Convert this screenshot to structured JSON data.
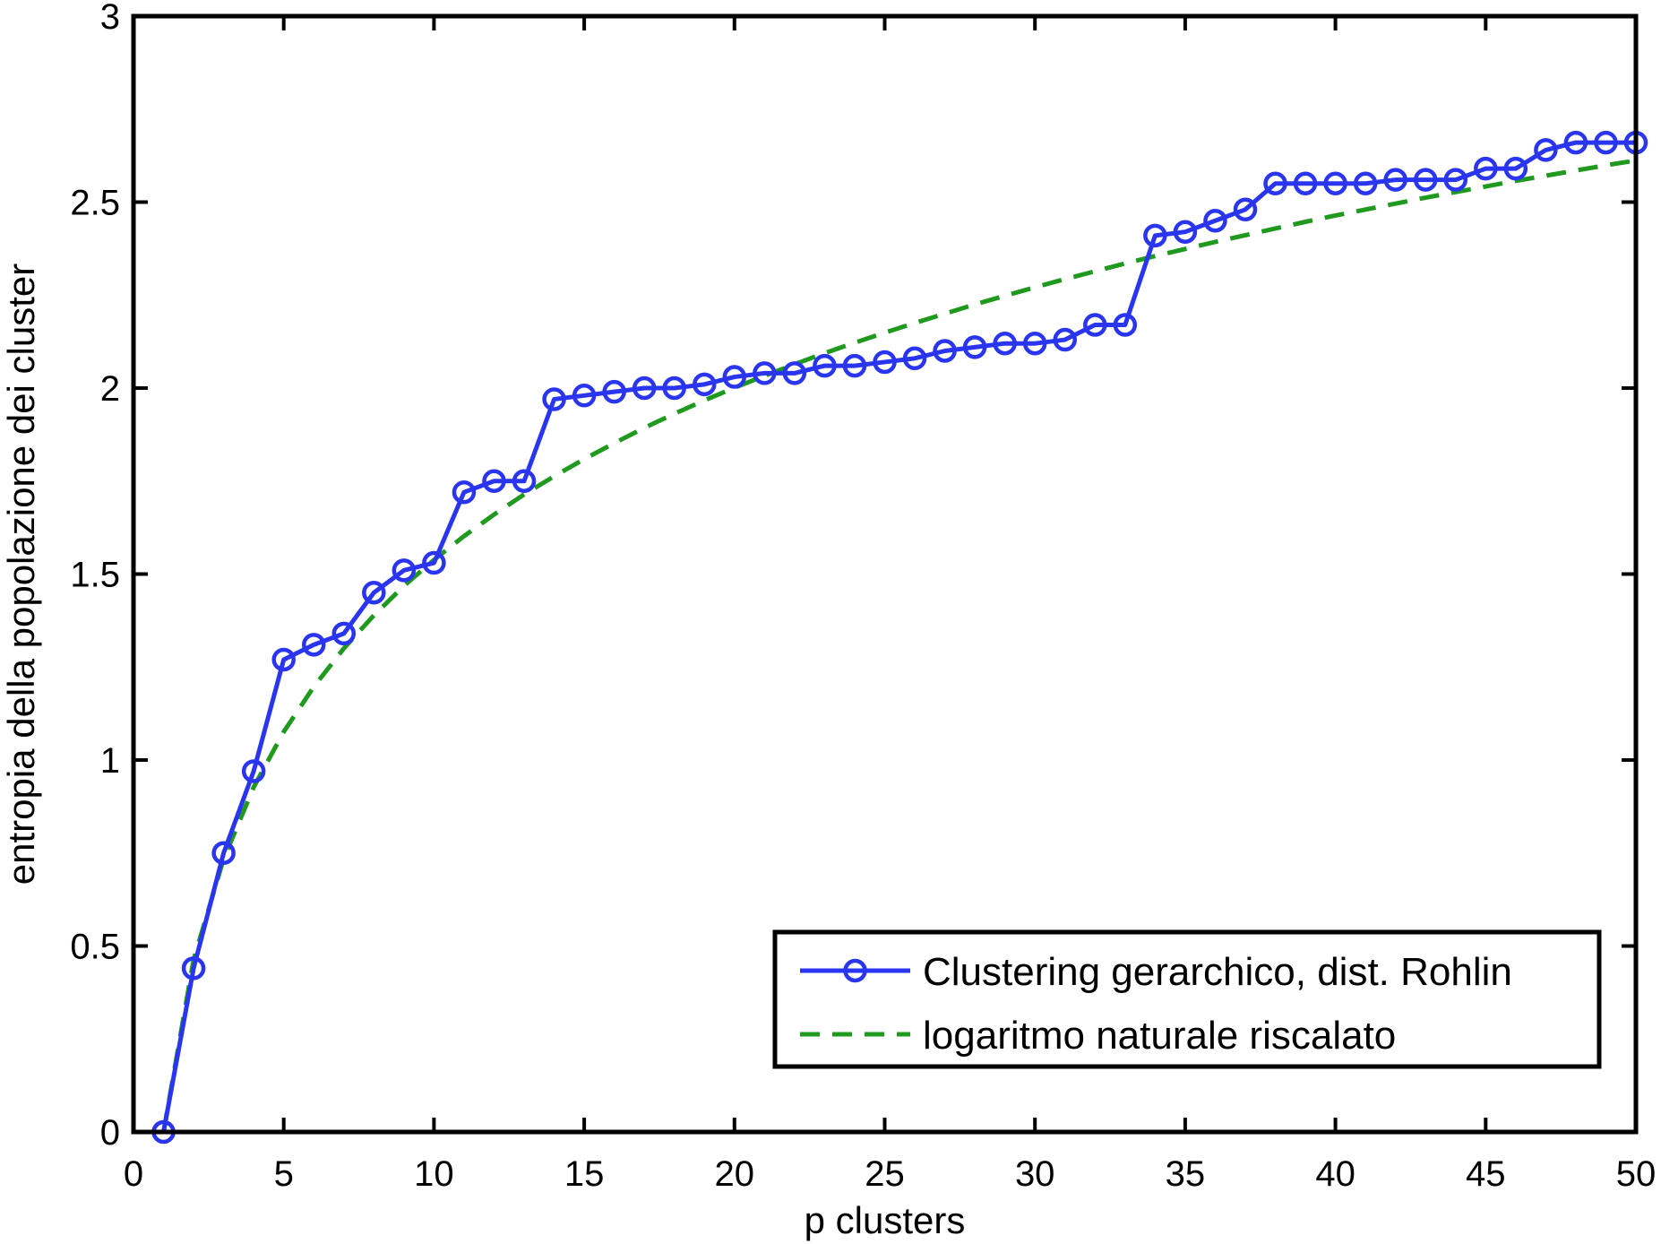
{
  "chart_data": {
    "type": "line",
    "xlabel": "p clusters",
    "ylabel": "entropia della popolazione dei cluster",
    "xlim": [
      0,
      50
    ],
    "ylim": [
      0,
      3
    ],
    "xticks": [
      0,
      5,
      10,
      15,
      20,
      25,
      30,
      35,
      40,
      45,
      50
    ],
    "yticks": [
      0,
      0.5,
      1,
      1.5,
      2,
      2.5,
      3
    ],
    "xtick_labels": [
      "0",
      "5",
      "10",
      "15",
      "20",
      "25",
      "30",
      "35",
      "40",
      "45",
      "50"
    ],
    "ytick_labels": [
      "0",
      "0.5",
      "1",
      "1.5",
      "2",
      "2.5",
      "3"
    ],
    "grid": false,
    "legend_position": "bottom-right",
    "series": [
      {
        "name": "Clustering gerarchico, dist. Rohlin",
        "color": "#2a35f0",
        "line_style": "solid",
        "marker": "circle",
        "x": [
          1,
          2,
          3,
          4,
          5,
          6,
          7,
          8,
          9,
          10,
          11,
          12,
          13,
          14,
          15,
          16,
          17,
          18,
          19,
          20,
          21,
          22,
          23,
          24,
          25,
          26,
          27,
          28,
          29,
          30,
          31,
          32,
          33,
          34,
          35,
          36,
          37,
          38,
          39,
          40,
          41,
          42,
          43,
          44,
          45,
          46,
          47,
          48,
          49,
          50
        ],
        "values": [
          0,
          0.44,
          0.75,
          0.97,
          1.27,
          1.31,
          1.34,
          1.45,
          1.51,
          1.53,
          1.72,
          1.75,
          1.75,
          1.97,
          1.98,
          1.99,
          2.0,
          2.0,
          2.01,
          2.03,
          2.04,
          2.04,
          2.06,
          2.06,
          2.07,
          2.08,
          2.1,
          2.11,
          2.12,
          2.12,
          2.13,
          2.17,
          2.17,
          2.41,
          2.42,
          2.45,
          2.48,
          2.55,
          2.55,
          2.55,
          2.55,
          2.56,
          2.56,
          2.56,
          2.59,
          2.59,
          2.64,
          2.66,
          2.66,
          2.66
        ]
      },
      {
        "name": "logaritmo naturale riscalato",
        "color": "#1f9a1f",
        "line_style": "dashed",
        "marker": "none",
        "x": [
          1,
          2,
          3,
          4,
          5,
          6,
          7,
          8,
          9,
          10,
          11,
          12,
          13,
          14,
          15,
          16,
          17,
          18,
          19,
          20,
          21,
          22,
          23,
          24,
          25,
          26,
          27,
          28,
          29,
          30,
          31,
          32,
          33,
          34,
          35,
          36,
          37,
          38,
          39,
          40,
          41,
          42,
          43,
          44,
          45,
          46,
          47,
          48,
          49,
          50
        ],
        "values": [
          0,
          0.463,
          0.734,
          0.927,
          1.076,
          1.197,
          1.3,
          1.389,
          1.468,
          1.538,
          1.602,
          1.66,
          1.714,
          1.763,
          1.809,
          1.852,
          1.893,
          1.931,
          1.967,
          2.001,
          2.033,
          2.064,
          2.094,
          2.122,
          2.149,
          2.175,
          2.2,
          2.225,
          2.248,
          2.271,
          2.293,
          2.314,
          2.335,
          2.355,
          2.374,
          2.393,
          2.411,
          2.429,
          2.447,
          2.464,
          2.48,
          2.496,
          2.512,
          2.527,
          2.542,
          2.557,
          2.571,
          2.585,
          2.599,
          2.612
        ]
      }
    ]
  }
}
